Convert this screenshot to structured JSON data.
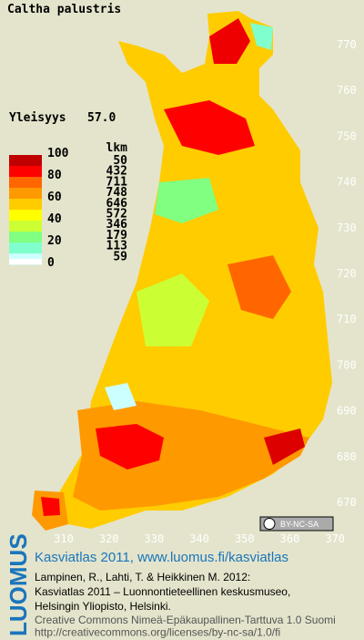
{
  "title": "Caltha palustris",
  "frequency": {
    "label": "Yleisyys",
    "value": "57.0"
  },
  "legend": {
    "class_labels": [
      100,
      80,
      60,
      40,
      20,
      0
    ],
    "colors": [
      "#c00000",
      "#ff0000",
      "#ff6600",
      "#ff9900",
      "#ffcc00",
      "#ffff00",
      "#ccff33",
      "#80ff80",
      "#80ffcc",
      "#ccffff",
      "#ffffff"
    ],
    "count_header": "lkm",
    "counts": [
      50,
      432,
      711,
      748,
      646,
      572,
      346,
      179,
      113,
      59
    ]
  },
  "grid": {
    "northing": [
      770,
      760,
      750,
      740,
      730,
      720,
      710,
      700,
      690,
      680,
      670
    ],
    "easting": [
      310,
      320,
      330,
      340,
      350,
      360,
      370
    ]
  },
  "license_badge": "BY-NC-SA",
  "footer": {
    "logo": "LUOMUS",
    "headline": "Kasviatlas 2011, www.luomus.fi/kasviatlas",
    "citation": [
      "Lampinen, R., Lahti, T. & Heikkinen M. 2012:",
      "Kasviatlas 2011 – Luonnontieteellinen keskusmuseo,",
      "Helsingin Yliopisto, Helsinki."
    ],
    "license": [
      "Creative Commons Nimeä-Epäkaupallinen-Tarttuva 1.0 Suomi",
      "http://creativecommons.org/licenses/by-nc-sa/1.0/fi"
    ]
  }
}
